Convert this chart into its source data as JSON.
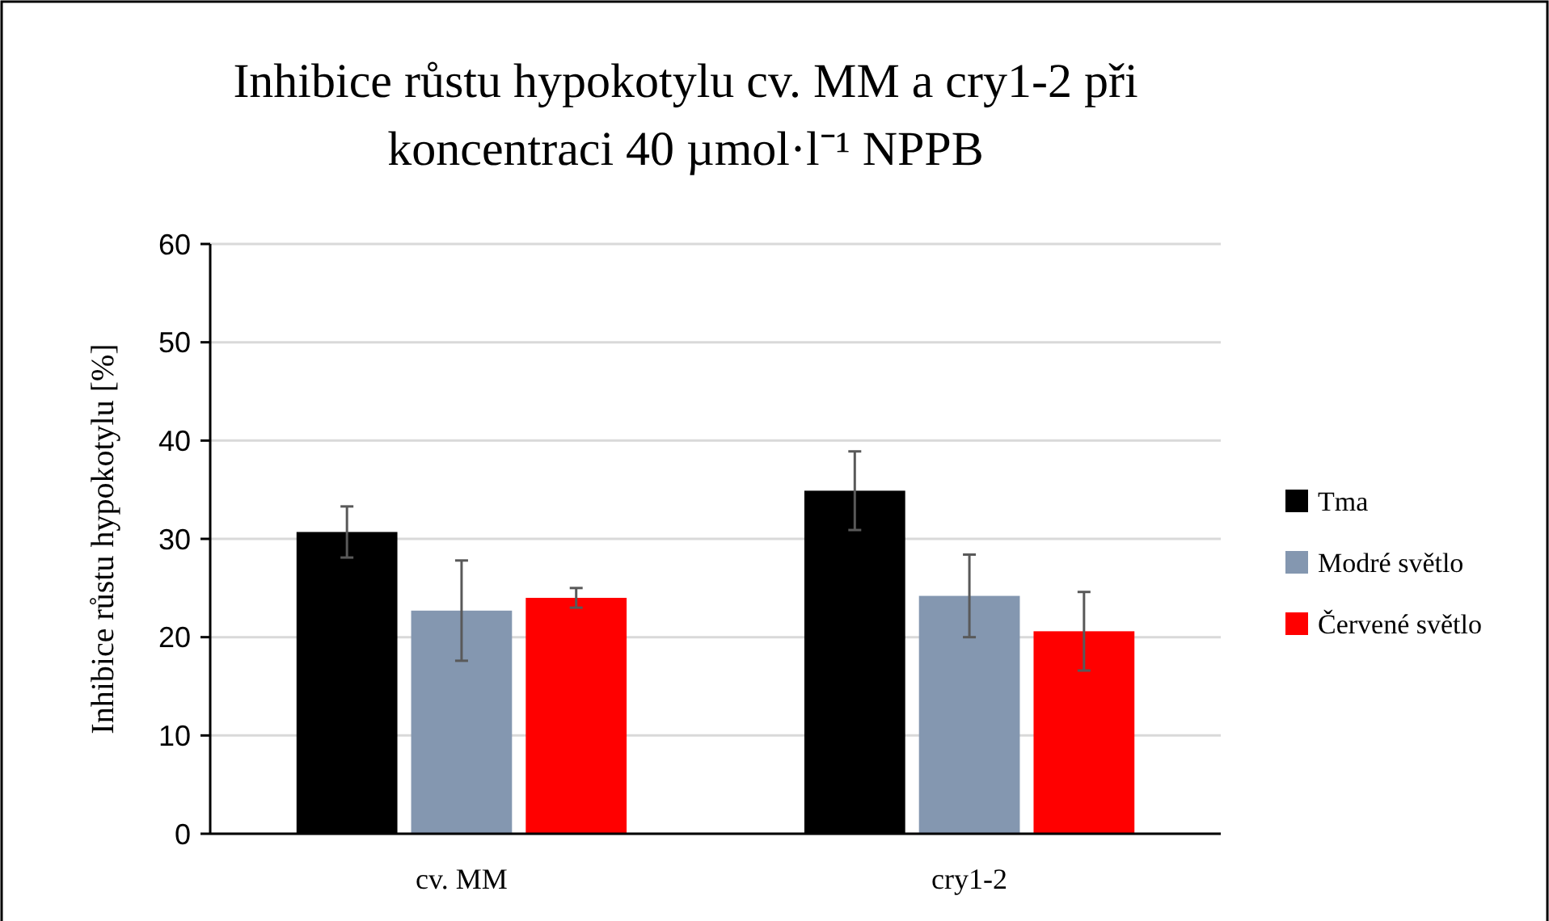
{
  "chart_data": {
    "type": "bar",
    "title": "Inhibice růstu hypokotylu  cv. MM a cry1-2 při koncentraci  40 µmol·l⁻¹ NPPB",
    "ylabel": "Inhibice růstu hypokotylu  [%]",
    "categories": [
      "cv. MM",
      "cry1-2"
    ],
    "series": [
      {
        "name": "Tma",
        "color": "#000000",
        "values": [
          30.7,
          34.9
        ],
        "errors": [
          2.6,
          4.0
        ]
      },
      {
        "name": "Modré světlo",
        "color": "#8497b0",
        "values": [
          22.7,
          24.2
        ],
        "errors": [
          5.1,
          4.2
        ]
      },
      {
        "name": "Červené světlo",
        "color": "#ff0000",
        "values": [
          24.0,
          20.6
        ],
        "errors": [
          1.0,
          4.0
        ]
      }
    ],
    "ylim": [
      0,
      60
    ],
    "yticks": [
      0,
      10,
      20,
      30,
      40,
      50,
      60
    ],
    "grid": "y",
    "legend": "right"
  }
}
